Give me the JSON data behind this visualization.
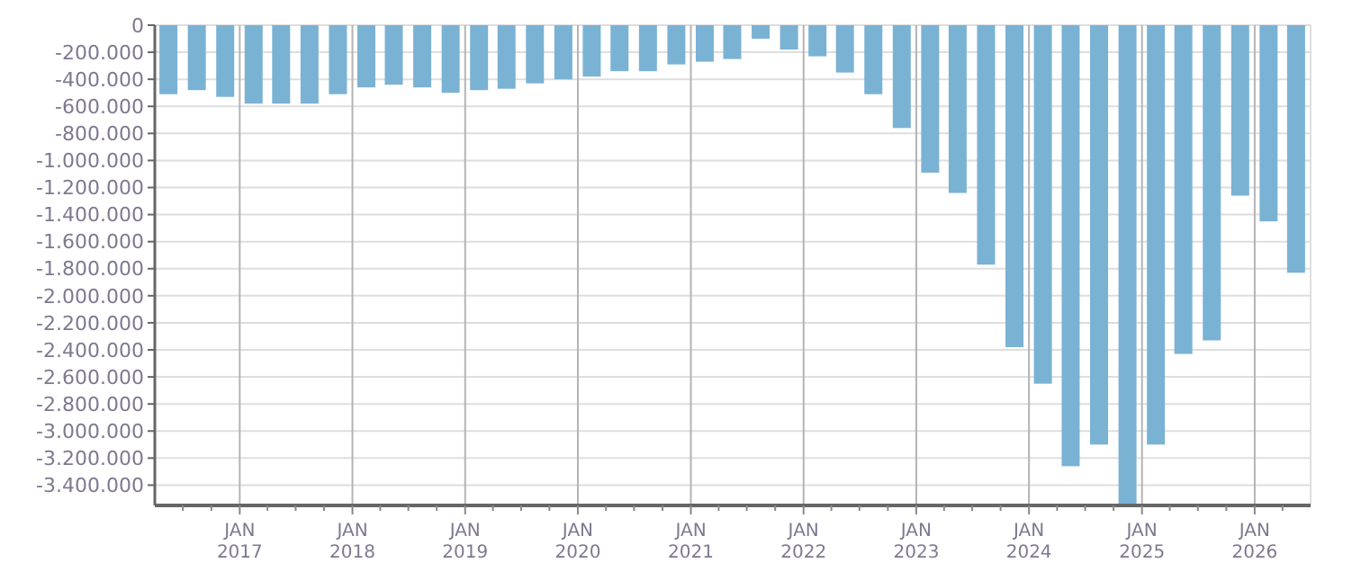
{
  "chart_data": {
    "type": "bar",
    "x": [
      "2016-05-15",
      "2016-08-15",
      "2016-11-15",
      "2017-02-15",
      "2017-05-15",
      "2017-08-15",
      "2017-11-15",
      "2018-02-15",
      "2018-05-15",
      "2018-08-15",
      "2018-11-15",
      "2019-02-15",
      "2019-05-15",
      "2019-08-15",
      "2019-11-15",
      "2020-02-15",
      "2020-05-15",
      "2020-08-15",
      "2020-11-15",
      "2021-02-15",
      "2021-05-15",
      "2021-08-15",
      "2021-11-15",
      "2022-02-15",
      "2022-05-15",
      "2022-08-15",
      "2022-11-15",
      "2023-02-15",
      "2023-05-15",
      "2023-08-15",
      "2023-11-15",
      "2024-02-15",
      "2024-05-15",
      "2024-08-15",
      "2024-11-15",
      "2025-02-15",
      "2025-05-15",
      "2025-08-15",
      "2025-11-15",
      "2026-02-15",
      "2026-05-15"
    ],
    "values": [
      -510000,
      -480000,
      -530000,
      -580000,
      -580000,
      -580000,
      -510000,
      -460000,
      -440000,
      -460000,
      -500000,
      -480000,
      -470000,
      -430000,
      -400000,
      -380000,
      -340000,
      -340000,
      -290000,
      -270000,
      -250000,
      -100000,
      -180000,
      -230000,
      -350000,
      -510000,
      -760000,
      -1090000,
      -1240000,
      -1770000,
      -2380000,
      -2650000,
      -3260000,
      -3100000,
      -3540000,
      -3100000,
      -2430000,
      -2330000,
      -1260000,
      -1450000,
      -1830000
    ],
    "color": "#7ab2d4",
    "xlim": [
      "2016-04-01",
      "2026-07-01"
    ],
    "xticks": [
      {
        "value": "2016-07-01",
        "label": null
      },
      {
        "value": "2016-10-01",
        "label": null
      },
      {
        "value": "2017-01-01",
        "label": "JAN 2017"
      },
      {
        "value": "2017-04-01",
        "label": null
      },
      {
        "value": "2017-07-01",
        "label": null
      },
      {
        "value": "2017-10-01",
        "label": null
      },
      {
        "value": "2018-01-01",
        "label": "JAN 2018"
      },
      {
        "value": "2018-04-01",
        "label": null
      },
      {
        "value": "2018-07-01",
        "label": null
      },
      {
        "value": "2018-10-01",
        "label": null
      },
      {
        "value": "2019-01-01",
        "label": "JAN 2019"
      },
      {
        "value": "2019-04-01",
        "label": null
      },
      {
        "value": "2019-07-01",
        "label": null
      },
      {
        "value": "2019-10-01",
        "label": null
      },
      {
        "value": "2020-01-01",
        "label": "JAN 2020"
      },
      {
        "value": "2020-04-01",
        "label": null
      },
      {
        "value": "2020-07-01",
        "label": null
      },
      {
        "value": "2020-10-01",
        "label": null
      },
      {
        "value": "2021-01-01",
        "label": "JAN 2021"
      },
      {
        "value": "2021-04-01",
        "label": null
      },
      {
        "value": "2021-07-01",
        "label": null
      },
      {
        "value": "2021-10-01",
        "label": null
      },
      {
        "value": "2022-01-01",
        "label": "JAN 2022"
      },
      {
        "value": "2022-04-01",
        "label": null
      },
      {
        "value": "2022-07-01",
        "label": null
      },
      {
        "value": "2022-10-01",
        "label": null
      },
      {
        "value": "2023-01-01",
        "label": "JAN 2023"
      },
      {
        "value": "2023-04-01",
        "label": null
      },
      {
        "value": "2023-07-01",
        "label": null
      },
      {
        "value": "2023-10-01",
        "label": null
      },
      {
        "value": "2024-01-01",
        "label": "JAN 2024"
      },
      {
        "value": "2024-04-01",
        "label": null
      },
      {
        "value": "2024-07-01",
        "label": null
      },
      {
        "value": "2024-10-01",
        "label": null
      },
      {
        "value": "2025-01-01",
        "label": "JAN 2025"
      },
      {
        "value": "2025-04-01",
        "label": null
      },
      {
        "value": "2025-07-01",
        "label": null
      },
      {
        "value": "2025-10-01",
        "label": null
      },
      {
        "value": "2026-01-01",
        "label": "JAN 2026"
      },
      {
        "value": "2026-04-01",
        "label": null
      }
    ],
    "ylim": [
      -3550000,
      0
    ],
    "yticks": [
      0,
      {
        "value": -200000,
        "label": "-200.000"
      },
      {
        "value": -400000,
        "label": "-400.000"
      },
      {
        "value": -600000,
        "label": "-600.000"
      },
      {
        "value": -800000,
        "label": "-800.000"
      },
      {
        "value": -1000000,
        "label": "-1.000.000"
      },
      {
        "value": -1200000,
        "label": "-1.200.000"
      },
      {
        "value": -1400000,
        "label": "-1.400.000"
      },
      {
        "value": -1600000,
        "label": "-1.600.000"
      },
      {
        "value": -1800000,
        "label": "-1.800.000"
      },
      {
        "value": -2000000,
        "label": "-2.000.000"
      },
      {
        "value": -2200000,
        "label": "-2.200.000"
      },
      {
        "value": -2400000,
        "label": "-2.400.000"
      },
      {
        "value": -2600000,
        "label": "-2.600.000"
      },
      {
        "value": -2800000,
        "label": "-2.800.000"
      },
      {
        "value": -3000000,
        "label": "-3.000.000"
      },
      {
        "value": -3200000,
        "label": "-3.200.000"
      },
      {
        "value": -3400000,
        "label": "-3.400.000"
      }
    ],
    "grid": true
  }
}
